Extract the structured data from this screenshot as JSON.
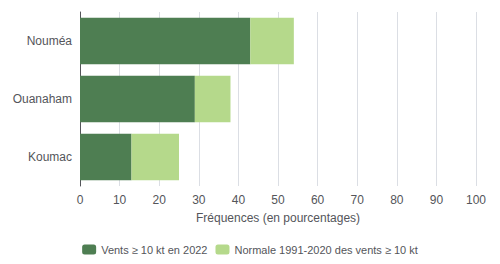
{
  "chart_data": {
    "type": "bar",
    "orientation": "horizontal",
    "stacked": true,
    "categories": [
      "Nouméa",
      "Ouanaham",
      "Koumac"
    ],
    "series": [
      {
        "name": "Vents ≥ 10 kt en 2022",
        "color": "#4e7e52",
        "values": [
          43,
          29,
          13
        ]
      },
      {
        "name": "Normale 1991-2020 des vents ≥ 10 kt",
        "color": "#b5d98b",
        "values": [
          11,
          9,
          12
        ]
      }
    ],
    "xlabel": "Fréquences (en pourcentages)",
    "xlim": [
      0,
      100
    ],
    "xticks": [
      0,
      10,
      20,
      30,
      40,
      50,
      60,
      70,
      80,
      90,
      100
    ],
    "grid": true,
    "legend": "bottom"
  }
}
